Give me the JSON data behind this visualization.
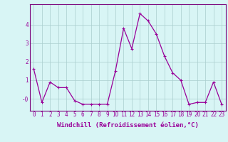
{
  "x": [
    0,
    1,
    2,
    3,
    4,
    5,
    6,
    7,
    8,
    9,
    10,
    11,
    12,
    13,
    14,
    15,
    16,
    17,
    18,
    19,
    20,
    21,
    22,
    23
  ],
  "y": [
    1.6,
    -0.2,
    0.9,
    0.6,
    0.6,
    -0.1,
    -0.3,
    -0.3,
    -0.3,
    -0.3,
    1.5,
    3.8,
    2.7,
    4.6,
    4.2,
    3.5,
    2.3,
    1.4,
    1.0,
    -0.3,
    -0.2,
    -0.2,
    0.9,
    -0.3
  ],
  "line_color": "#990099",
  "marker": "+",
  "marker_size": 3,
  "marker_lw": 0.8,
  "bg_color": "#d8f5f5",
  "grid_color": "#aacece",
  "xlabel": "Windchill (Refroidissement éolien,°C)",
  "xlim": [
    -0.5,
    23.5
  ],
  "ylim": [
    -0.65,
    5.1
  ],
  "ytick_vals": [
    0,
    1,
    2,
    3,
    4
  ],
  "ytick_labels": [
    "-0",
    "1",
    "2",
    "3",
    "4"
  ],
  "xticks": [
    0,
    1,
    2,
    3,
    4,
    5,
    6,
    7,
    8,
    9,
    10,
    11,
    12,
    13,
    14,
    15,
    16,
    17,
    18,
    19,
    20,
    21,
    22,
    23
  ],
  "xlabel_fontsize": 6.5,
  "tick_fontsize": 5.5,
  "line_width": 0.9,
  "spine_color": "#7a007a"
}
